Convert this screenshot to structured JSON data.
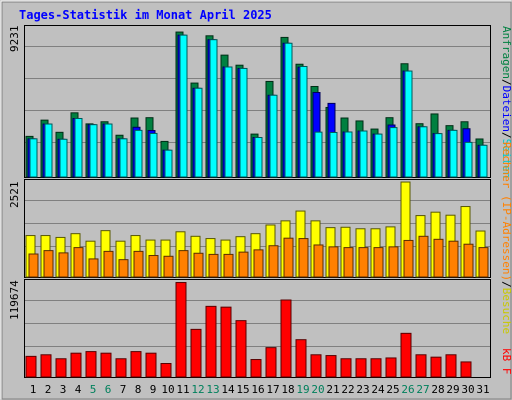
{
  "chart_data": [
    {
      "type": "bar",
      "title": "Tages-Statistik im Monat April 2025",
      "panel": "top",
      "categories": [
        "1",
        "2",
        "3",
        "4",
        "5",
        "6",
        "7",
        "8",
        "9",
        "10",
        "11",
        "12",
        "13",
        "14",
        "15",
        "16",
        "17",
        "18",
        "19",
        "20",
        "21",
        "22",
        "23",
        "24",
        "25",
        "26",
        "27",
        "28",
        "29",
        "30",
        "31"
      ],
      "ymax_label": "9231",
      "ylim": [
        0,
        9231
      ],
      "legend": {
        "anfragen": "Anfragen",
        "sep1": "/",
        "dateien": "Dateien",
        "sep2": "/",
        "seiten": "Seiten"
      },
      "series": [
        {
          "name": "Anfragen",
          "color": "#008040",
          "values": [
            2500,
            3500,
            2750,
            3950,
            3270,
            3400,
            2570,
            3630,
            3650,
            2190,
            8920,
            5780,
            8690,
            7500,
            6880,
            2640,
            5880,
            8590,
            6940,
            5570,
            4280,
            3630,
            3450,
            2950,
            3650,
            6970,
            3280,
            3880,
            3160,
            3400,
            2340
          ]
        },
        {
          "name": "Dateien",
          "color": "#0000ff",
          "values": [
            2350,
            3260,
            2320,
            3600,
            3220,
            3260,
            2350,
            3060,
            2860,
            1650,
            8730,
            5460,
            8450,
            6770,
            6680,
            2430,
            5030,
            8230,
            6760,
            5200,
            4530,
            2770,
            2830,
            2640,
            3200,
            6520,
            3090,
            2670,
            2870,
            2970,
            1950
          ]
        },
        {
          "name": "Seiten",
          "color": "#00ffff",
          "values": [
            2350,
            3260,
            2320,
            3600,
            3220,
            3260,
            2350,
            2870,
            2680,
            1650,
            8730,
            5460,
            8450,
            6770,
            6680,
            2430,
            5030,
            8230,
            6800,
            2760,
            2740,
            2770,
            2830,
            2640,
            3040,
            6520,
            3090,
            2670,
            2870,
            2130,
            1950
          ]
        }
      ]
    },
    {
      "type": "bar",
      "panel": "middle",
      "categories": [
        "1",
        "2",
        "3",
        "4",
        "5",
        "6",
        "7",
        "8",
        "9",
        "10",
        "11",
        "12",
        "13",
        "14",
        "15",
        "16",
        "17",
        "18",
        "19",
        "20",
        "21",
        "22",
        "23",
        "24",
        "25",
        "26",
        "27",
        "28",
        "29",
        "30",
        "31"
      ],
      "ymax_label": "2521",
      "ylim": [
        0,
        2521
      ],
      "legend": {
        "rechner": "Rechner (IP-Adressen)",
        "sep": "/",
        "besuche": "Besuche"
      },
      "series": [
        {
          "name": "Besuche",
          "color": "#ffff00",
          "values": [
            1100,
            1100,
            1050,
            1150,
            950,
            1230,
            950,
            1100,
            980,
            980,
            1200,
            1080,
            1020,
            980,
            1070,
            1150,
            1380,
            1490,
            1750,
            1490,
            1310,
            1320,
            1280,
            1280,
            1330,
            2520,
            1630,
            1720,
            1640,
            1870,
            1220
          ]
        },
        {
          "name": "Rechner (IP-Adressen)",
          "color": "#ff8000",
          "values": [
            610,
            700,
            640,
            780,
            480,
            680,
            460,
            680,
            570,
            550,
            700,
            630,
            600,
            600,
            660,
            720,
            830,
            1030,
            1020,
            850,
            800,
            780,
            780,
            780,
            800,
            970,
            1080,
            1000,
            950,
            870,
            780
          ]
        }
      ]
    },
    {
      "type": "bar",
      "panel": "bottom",
      "categories": [
        "1",
        "2",
        "3",
        "4",
        "5",
        "6",
        "7",
        "8",
        "9",
        "10",
        "11",
        "12",
        "13",
        "14",
        "15",
        "16",
        "17",
        "18",
        "19",
        "20",
        "21",
        "22",
        "23",
        "24",
        "25",
        "26",
        "27",
        "28",
        "29",
        "30",
        "31"
      ],
      "ymax_label": "119674",
      "ylim": [
        0,
        119674
      ],
      "legend": {
        "kbf": "kB F"
      },
      "series": [
        {
          "name": "kB F",
          "color": "#ff0000",
          "values": [
            26000,
            28000,
            23000,
            30000,
            32000,
            30000,
            23000,
            32000,
            30000,
            17000,
            119000,
            60000,
            89000,
            88000,
            71000,
            22000,
            37000,
            97000,
            47000,
            28000,
            27000,
            23000,
            23000,
            23000,
            24000,
            55000,
            28000,
            25000,
            28000,
            19000,
            0
          ]
        }
      ]
    }
  ],
  "weekend_days": [
    5,
    6,
    12,
    13,
    19,
    20,
    26,
    27
  ],
  "colors": {
    "title": "#0000ff",
    "weekday_label": "#000000",
    "weekend_label": "#00805c",
    "panel_bg": "#c0c0c0"
  }
}
